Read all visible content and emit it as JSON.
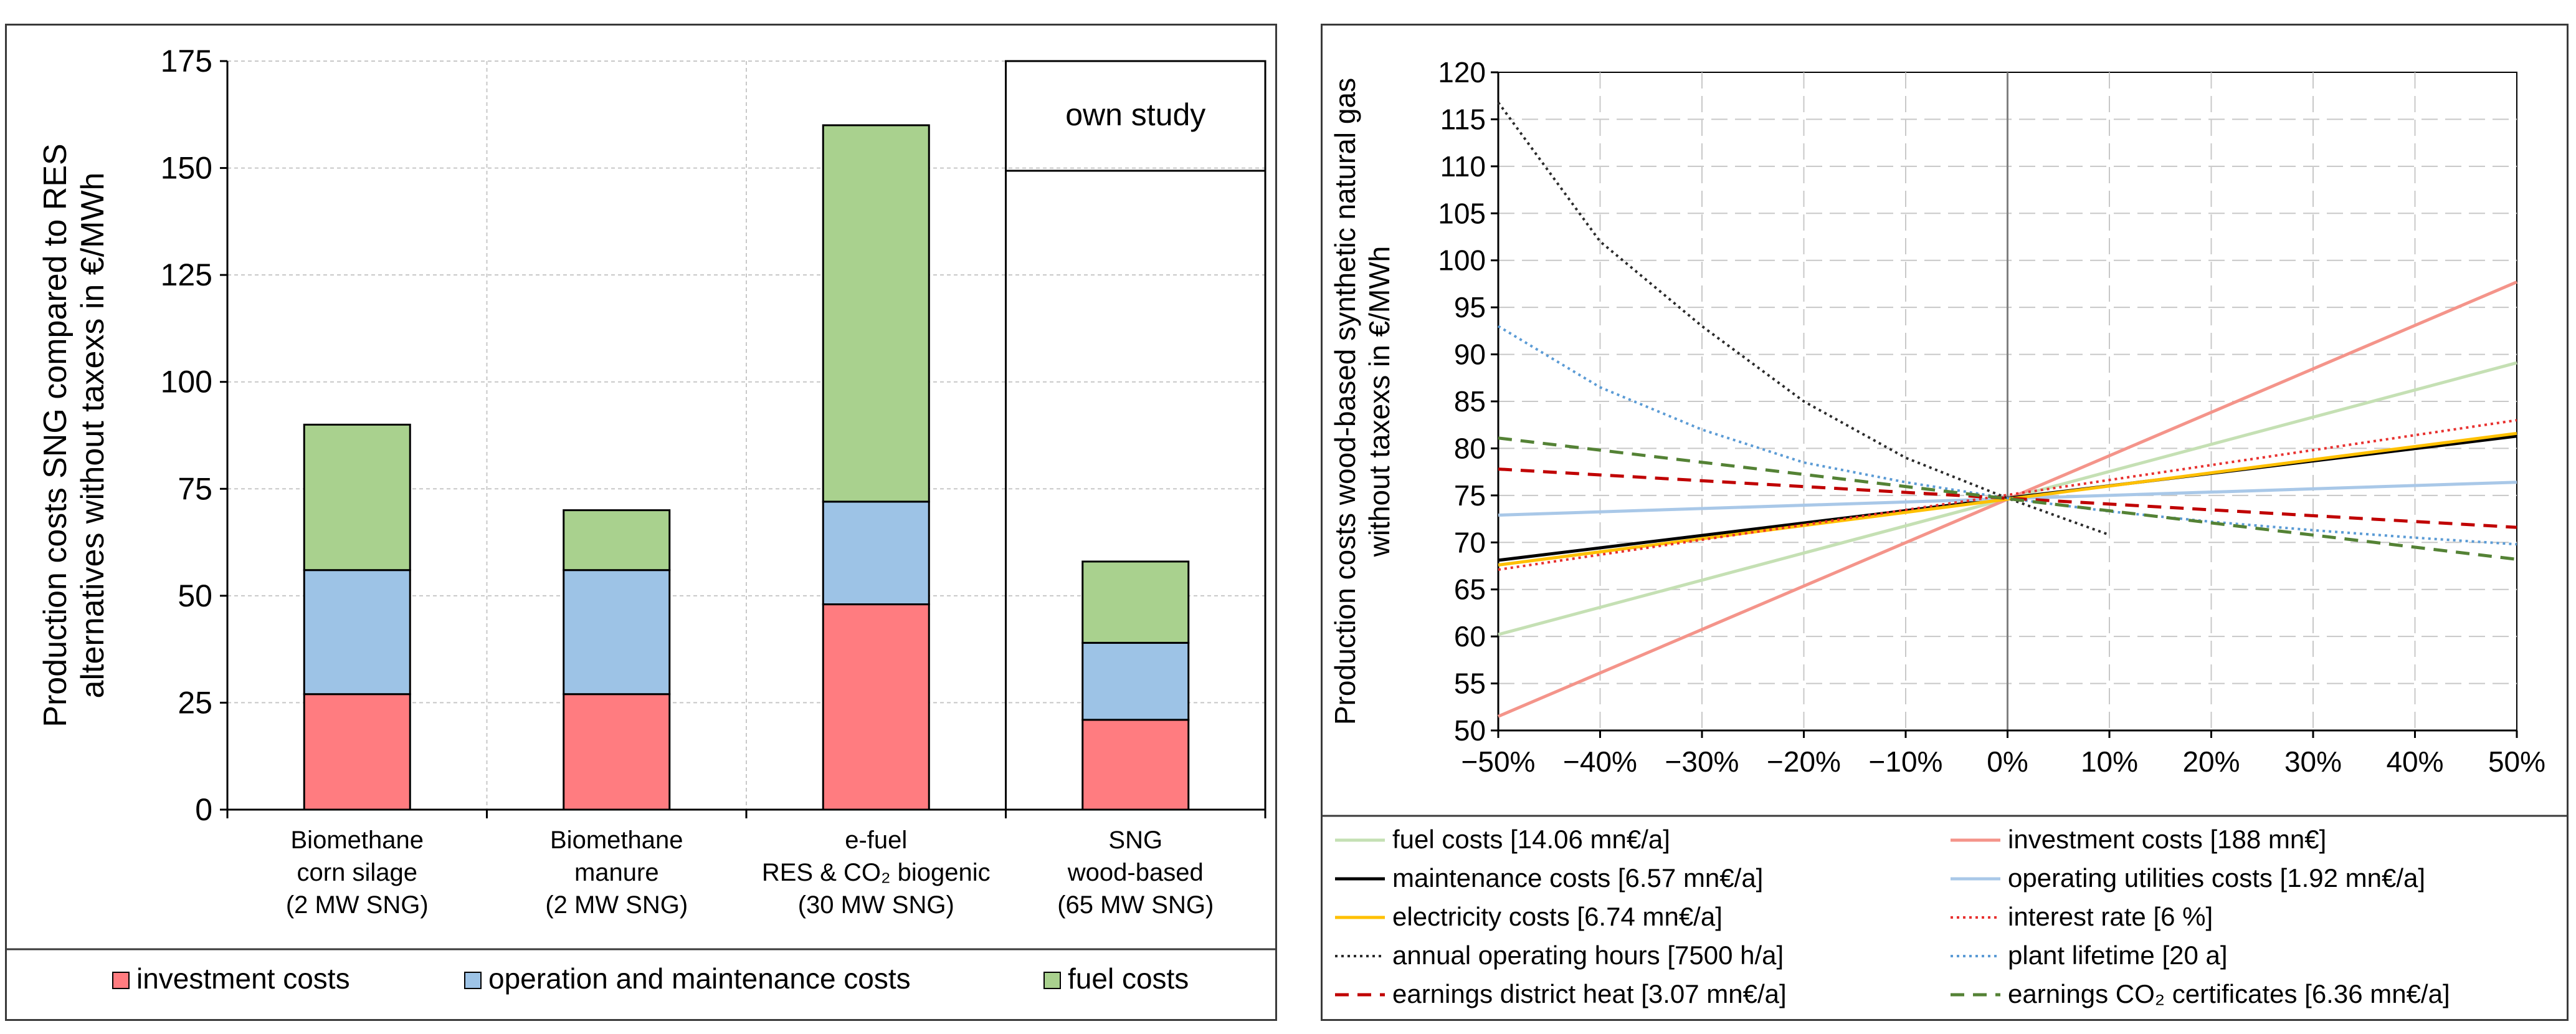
{
  "chart_data": [
    {
      "type": "bar",
      "stacked": true,
      "ylabel_lines": [
        "Production costs SNG compared to RES",
        "alternatives without taxexs in €/MWh"
      ],
      "ylim": [
        0,
        175
      ],
      "yticks": [
        0,
        25,
        50,
        75,
        100,
        125,
        150,
        175
      ],
      "categories": [
        {
          "lines": [
            "Biomethane",
            "corn silage",
            "(2 MW SNG)"
          ]
        },
        {
          "lines": [
            "Biomethane",
            "manure",
            "(2 MW SNG)"
          ]
        },
        {
          "lines": [
            "e-fuel",
            "RES & CO₂ biogenic",
            "(30 MW SNG)"
          ]
        },
        {
          "lines": [
            "SNG",
            "wood-based",
            "(65 MW SNG)"
          ]
        }
      ],
      "series": [
        {
          "name": "investment costs",
          "color": "#FF7C80",
          "values": [
            27,
            27,
            48,
            21
          ]
        },
        {
          "name": "operation and maintenance costs",
          "color": "#9DC3E6",
          "values": [
            29,
            29,
            24,
            18
          ]
        },
        {
          "name": "fuel costs",
          "color": "#A9D18E",
          "values": [
            34,
            14,
            88,
            19
          ]
        }
      ],
      "annotation": "own study",
      "grid": true,
      "legend": "bottom"
    },
    {
      "type": "line",
      "ylabel_lines": [
        "Production costs wood-based synthetic natural gas",
        "without taxexs in €/MWh"
      ],
      "xlim": [
        -50,
        50
      ],
      "ylim": [
        50,
        120
      ],
      "xticks": [
        "−50%",
        "−40%",
        "−30%",
        "−20%",
        "−10%",
        "0%",
        "10%",
        "20%",
        "30%",
        "40%",
        "50%"
      ],
      "yticks": [
        50,
        55,
        60,
        65,
        70,
        75,
        80,
        85,
        90,
        95,
        100,
        105,
        110,
        115,
        120
      ],
      "grid": true,
      "legend": "bottom",
      "series": [
        {
          "name": "fuel costs [14.06 mn€/a]",
          "color": "#C5E0B4",
          "dash": "solid",
          "x": [
            -50,
            50
          ],
          "y": [
            60.2,
            89.1
          ]
        },
        {
          "name": "investment costs [188 mn€]",
          "color": "#F4948A",
          "dash": "solid",
          "x": [
            -50,
            50
          ],
          "y": [
            51.5,
            97.7
          ]
        },
        {
          "name": "maintenance costs [6.57 mn€/a]",
          "color": "#000000",
          "dash": "solid",
          "x": [
            -50,
            50
          ],
          "y": [
            68.1,
            81.3
          ]
        },
        {
          "name": "operating utilities costs [1.92 mn€/a]",
          "color": "#A9C8E8",
          "dash": "solid",
          "x": [
            -50,
            50
          ],
          "y": [
            72.9,
            76.4
          ]
        },
        {
          "name": "electricity costs [6.74 mn€/a]",
          "color": "#FFC000",
          "dash": "solid",
          "x": [
            -50,
            50
          ],
          "y": [
            67.6,
            81.6
          ]
        },
        {
          "name": "interest rate [6 %]",
          "color": "#E8312F",
          "dash": "dot",
          "x": [
            -50,
            50
          ],
          "y": [
            67.1,
            83.0
          ]
        },
        {
          "name": "annual operating hours [7500 h/a]",
          "color": "#2B2B2B",
          "dash": "dot",
          "x": [
            -50,
            -40,
            -30,
            -20,
            -10,
            0,
            10
          ],
          "y": [
            116.8,
            102.0,
            93.0,
            85.0,
            79.0,
            74.7,
            70.8
          ]
        },
        {
          "name": "plant lifetime [20 a]",
          "color": "#5B9BD5",
          "dash": "dot",
          "x": [
            -50,
            -40,
            -30,
            -20,
            -10,
            0,
            10,
            20,
            30,
            40,
            50
          ],
          "y": [
            93.0,
            86.5,
            82.0,
            78.5,
            76.4,
            74.7,
            73.3,
            72.2,
            71.3,
            70.5,
            69.8
          ]
        },
        {
          "name": "earnings district heat [3.07 mn€/a]",
          "color": "#C00000",
          "dash": "dash",
          "x": [
            -50,
            50
          ],
          "y": [
            77.8,
            71.6
          ]
        },
        {
          "name": "earnings CO₂ certificates [6.36 mn€/a]",
          "color": "#548235",
          "dash": "dash",
          "x": [
            -50,
            50
          ],
          "y": [
            81.1,
            68.2
          ]
        }
      ]
    }
  ]
}
